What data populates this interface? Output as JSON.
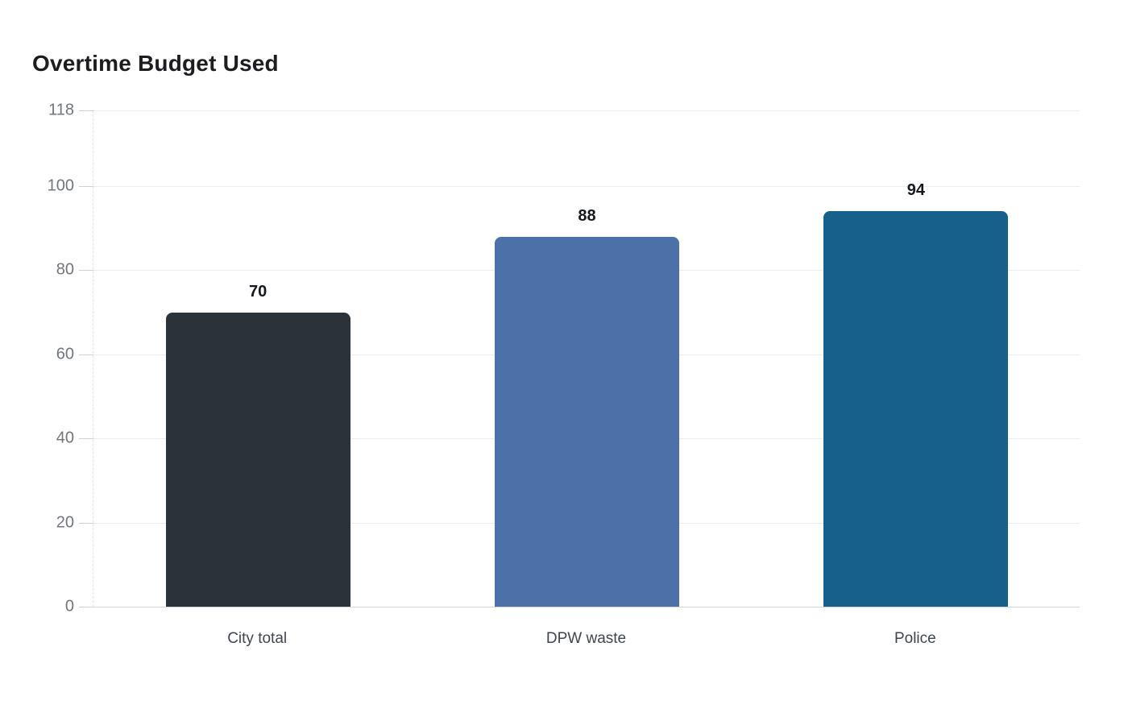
{
  "chart_data": {
    "type": "bar",
    "title": "Overtime Budget Used",
    "categories": [
      "City total",
      "DPW waste",
      "Police"
    ],
    "values": [
      70,
      88,
      94
    ],
    "value_labels": [
      "70",
      "88",
      "94"
    ],
    "bar_colors": [
      "#2b333a",
      "#4c71a8",
      "#16618c"
    ],
    "y_ticks": [
      0,
      20,
      40,
      60,
      80,
      100,
      118
    ],
    "ylim": [
      0,
      118
    ],
    "xlabel": "",
    "ylabel": "",
    "grid": "horizontal-only",
    "legend": "none",
    "background": "#ffffff"
  },
  "style": {
    "title_color": "#1b1d21",
    "y_tick_label_color": "#72777e",
    "category_label_color": "#3f4650",
    "value_label_color": "#15181c",
    "gridline_color": "#ededee",
    "baseline_color": "#d4d7da",
    "tick_mark_color": "#cfd2d5"
  }
}
